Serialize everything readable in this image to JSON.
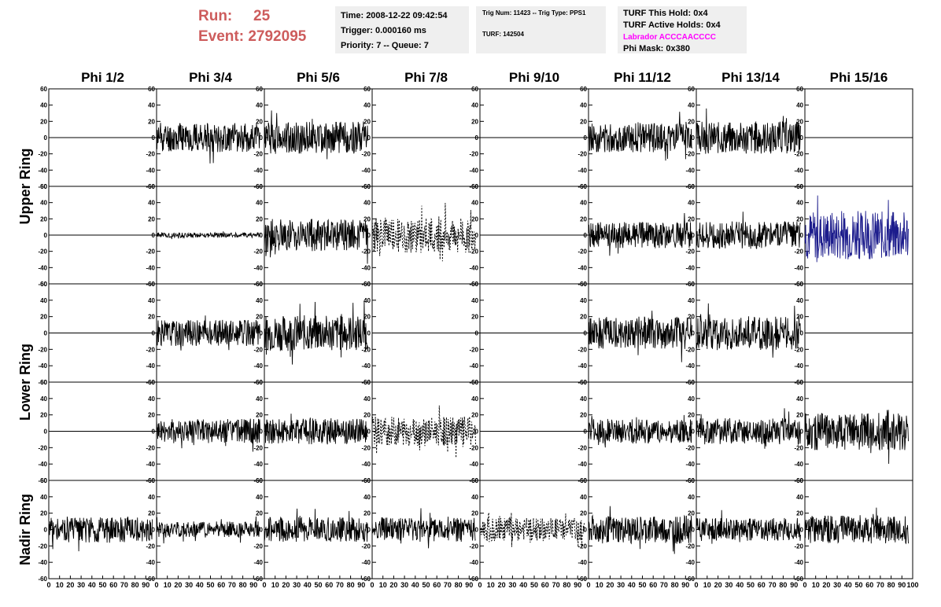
{
  "header": {
    "run_label": "Run:",
    "run_value": "25",
    "event_label": "Event:",
    "event_value": "2792095",
    "time": "Time: 2008-12-22 09:42:54",
    "trigger": "Trigger: 0.000160 ms",
    "priority": "Priority: 7 -- Queue: 7",
    "trig_num": "Trig Num: 11423 -- Trig Type: PPS1",
    "turf": "TURF: 142504",
    "turf_hold": "TURF This Hold: 0x4",
    "turf_active": "TURF Active Holds: 0x4",
    "labrador": "Labrador ACCCAACCCC",
    "phi_mask": "Phi Mask: 0x380"
  },
  "colors": {
    "run_text": "#cd5c5c",
    "labrador_text": "#ff00ff",
    "info_bg": "#efefef",
    "trace_default": "#000000",
    "trace_blue": "#1c1c8c"
  },
  "chart_data": {
    "type": "line",
    "columns": [
      "Phi 1/2",
      "Phi 3/4",
      "Phi 5/6",
      "Phi 7/8",
      "Phi 9/10",
      "Phi 11/12",
      "Phi 13/14",
      "Phi 15/16"
    ],
    "rows": [
      "Upper Ring",
      "Upper Ring",
      "Lower Ring",
      "Lower Ring",
      "Nadir Ring"
    ],
    "row_labels": [
      "Upper Ring",
      "Lower Ring",
      "Nadir Ring"
    ],
    "ylim": [
      -60,
      60
    ],
    "yticks": [
      "60",
      "40",
      "20",
      "0",
      "-20",
      "-40",
      "-60"
    ],
    "xlim": [
      0,
      100
    ],
    "xtick_labels": [
      "0",
      "10",
      "20",
      "30",
      "40",
      "50",
      "60",
      "70",
      "80",
      "90",
      "100"
    ],
    "grid": false,
    "panels": [
      [
        {
          "style": "flat"
        },
        {
          "style": "noise",
          "amp": 18,
          "seed": 11
        },
        {
          "style": "noise",
          "amp": 20,
          "seed": 12
        },
        {
          "style": "flat"
        },
        {
          "style": "flat"
        },
        {
          "style": "noise",
          "amp": 18,
          "seed": 13
        },
        {
          "style": "noise",
          "amp": 20,
          "seed": 14
        },
        {
          "style": "flat"
        }
      ],
      [
        {
          "style": "flat"
        },
        {
          "style": "noise",
          "amp": 3,
          "seed": 21
        },
        {
          "style": "noise",
          "amp": 20,
          "seed": 22
        },
        {
          "style": "dashed",
          "amp": 22,
          "seed": 23
        },
        {
          "style": "flat"
        },
        {
          "style": "noise",
          "amp": 16,
          "seed": 24
        },
        {
          "style": "noise",
          "amp": 17,
          "seed": 25
        },
        {
          "style": "blue",
          "amp": 30,
          "seed": 26
        }
      ],
      [
        {
          "style": "flat"
        },
        {
          "style": "noise",
          "amp": 16,
          "seed": 31
        },
        {
          "style": "noise",
          "amp": 22,
          "seed": 32
        },
        {
          "style": "flat"
        },
        {
          "style": "flat"
        },
        {
          "style": "noise",
          "amp": 20,
          "seed": 33
        },
        {
          "style": "noise",
          "amp": 21,
          "seed": 34
        },
        {
          "style": "flat"
        }
      ],
      [
        {
          "style": "flat"
        },
        {
          "style": "noise",
          "amp": 15,
          "seed": 41
        },
        {
          "style": "noise",
          "amp": 16,
          "seed": 42
        },
        {
          "style": "dashed",
          "amp": 18,
          "seed": 43
        },
        {
          "style": "flat"
        },
        {
          "style": "noise",
          "amp": 15,
          "seed": 44
        },
        {
          "style": "noise",
          "amp": 16,
          "seed": 45
        },
        {
          "style": "noise",
          "amp": 23,
          "seed": 46
        }
      ],
      [
        {
          "style": "noise",
          "amp": 16,
          "seed": 51
        },
        {
          "style": "noise",
          "amp": 10,
          "seed": 52
        },
        {
          "style": "noise",
          "amp": 15,
          "seed": 53
        },
        {
          "style": "noise",
          "amp": 15,
          "seed": 54
        },
        {
          "style": "dashed",
          "amp": 14,
          "seed": 55
        },
        {
          "style": "noise",
          "amp": 17,
          "seed": 56
        },
        {
          "style": "noise",
          "amp": 14,
          "seed": 57
        },
        {
          "style": "noise",
          "amp": 17,
          "seed": 58
        }
      ]
    ]
  }
}
